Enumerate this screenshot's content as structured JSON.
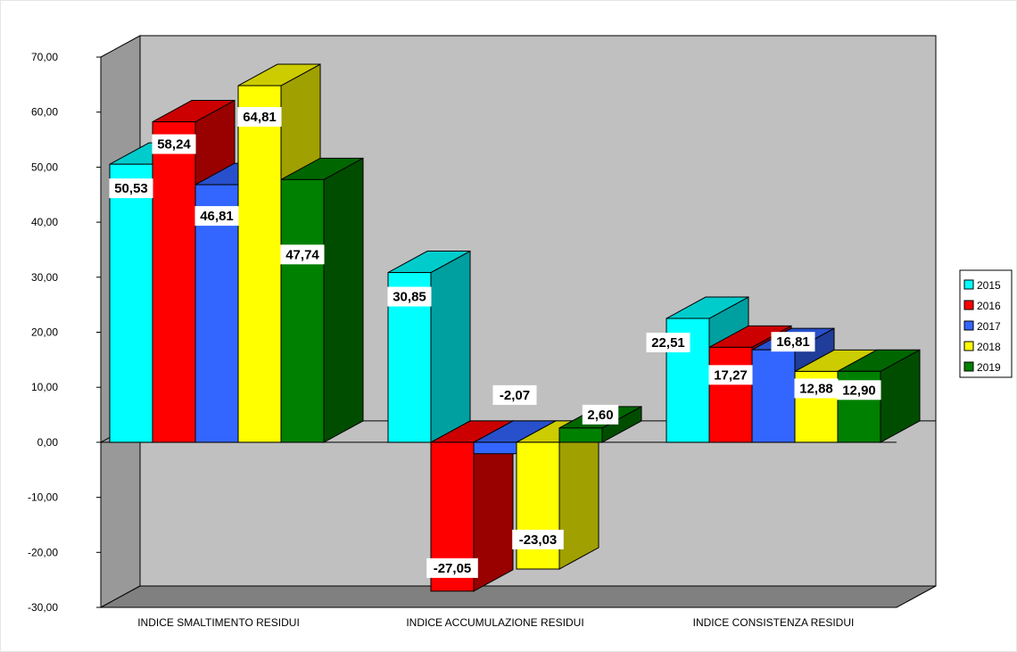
{
  "chart_data": {
    "type": "bar",
    "style": "3d-clustered-column",
    "categories": [
      "INDICE SMALTIMENTO RESIDUI",
      "INDICE ACCUMULAZIONE RESIDUI",
      "INDICE CONSISTENZA RESIDUI"
    ],
    "series": [
      {
        "name": "2015",
        "values": [
          50.53,
          30.85,
          22.51
        ],
        "labels": [
          "50,53",
          "30,85",
          "22,51"
        ],
        "color": "#00FFFF",
        "side": "#00A0A0",
        "top": "#00CCCC"
      },
      {
        "name": "2016",
        "values": [
          58.24,
          -27.05,
          17.27
        ],
        "labels": [
          "58,24",
          "-27,05",
          "17,27"
        ],
        "color": "#FF0000",
        "side": "#990000",
        "top": "#CC0000"
      },
      {
        "name": "2017",
        "values": [
          46.81,
          -2.07,
          16.81
        ],
        "labels": [
          "46,81",
          "-2,07",
          "16,81"
        ],
        "color": "#3366FF",
        "side": "#1F3D99",
        "top": "#2850CC"
      },
      {
        "name": "2018",
        "values": [
          64.81,
          -23.03,
          12.88
        ],
        "labels": [
          "64,81",
          "-23,03",
          "12,88"
        ],
        "color": "#FFFF00",
        "side": "#A0A000",
        "top": "#CCCC00"
      },
      {
        "name": "2019",
        "values": [
          47.74,
          2.6,
          12.9
        ],
        "labels": [
          "47,74",
          "2,60",
          "12,90"
        ],
        "color": "#008000",
        "side": "#004D00",
        "top": "#006600"
      }
    ],
    "yticks": [
      "70,00",
      "60,00",
      "50,00",
      "40,00",
      "30,00",
      "20,00",
      "10,00",
      "0,00",
      "-10,00",
      "-20,00",
      "-30,00"
    ],
    "ylim": [
      -30,
      70
    ],
    "legend": "right",
    "grid": false,
    "wall_color": "#C0C0C0"
  }
}
